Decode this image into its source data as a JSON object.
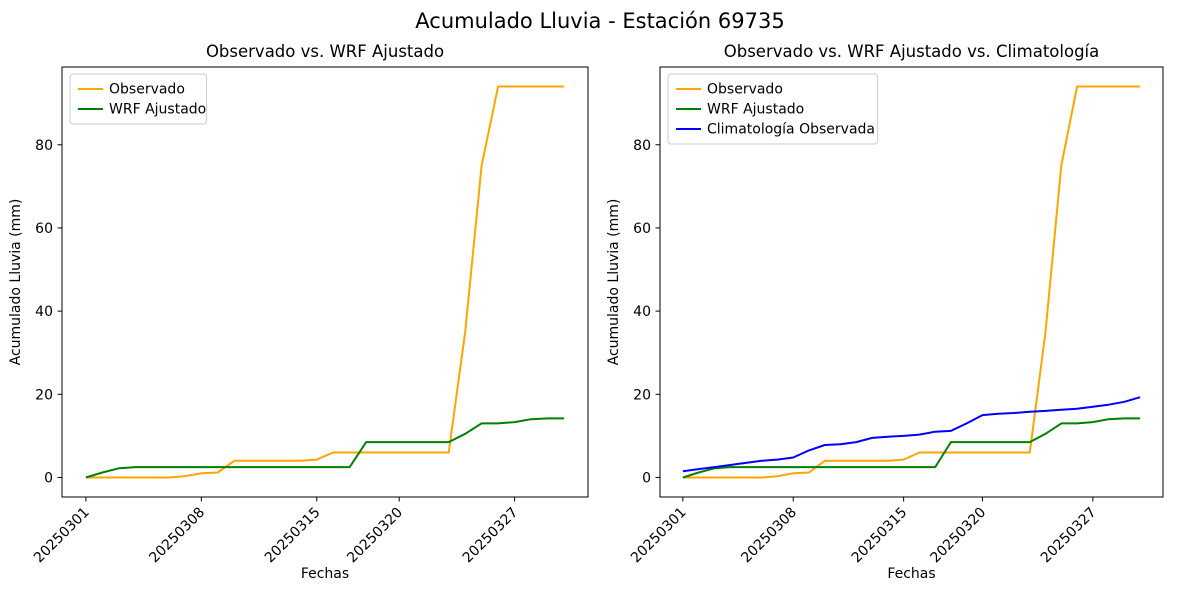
{
  "figure": {
    "title": "Acumulado Lluvia - Estación 69735",
    "background": "#ffffff"
  },
  "chart_data": [
    {
      "type": "line",
      "title": "Observado vs. WRF Ajustado",
      "xlabel": "Fechas",
      "ylabel": "Acumulado Lluvia (mm)",
      "x": [
        "20250301",
        "20250302",
        "20250303",
        "20250304",
        "20250305",
        "20250306",
        "20250307",
        "20250308",
        "20250309",
        "20250310",
        "20250311",
        "20250312",
        "20250313",
        "20250314",
        "20250315",
        "20250316",
        "20250317",
        "20250318",
        "20250319",
        "20250320",
        "20250321",
        "20250322",
        "20250323",
        "20250324",
        "20250325",
        "20250326",
        "20250327",
        "20250328",
        "20250329",
        "20250330"
      ],
      "xticks": [
        "20250301",
        "20250308",
        "20250315",
        "20250320",
        "20250327"
      ],
      "yticks": [
        0,
        20,
        40,
        60,
        80
      ],
      "ylim": [
        -4.7,
        98.7
      ],
      "grid": false,
      "legend_position": "upper left",
      "series": [
        {
          "name": "Observado",
          "color": "#ffa500",
          "values": [
            0,
            0,
            0,
            0,
            0,
            0,
            0.3,
            1,
            1.2,
            4,
            4,
            4,
            4,
            4,
            4.3,
            6,
            6,
            6,
            6,
            6,
            6,
            6,
            6,
            35,
            75,
            94,
            94,
            94,
            94,
            94
          ]
        },
        {
          "name": "WRF Ajustado",
          "color": "#008000",
          "values": [
            0,
            1.2,
            2.2,
            2.5,
            2.5,
            2.5,
            2.5,
            2.5,
            2.5,
            2.5,
            2.5,
            2.5,
            2.5,
            2.5,
            2.5,
            2.5,
            2.5,
            8.5,
            8.5,
            8.5,
            8.5,
            8.5,
            8.5,
            10.5,
            13,
            13,
            13.3,
            14,
            14.2,
            14.2
          ]
        }
      ]
    },
    {
      "type": "line",
      "title": "Observado vs. WRF Ajustado vs. Climatología",
      "xlabel": "Fechas",
      "ylabel": "Acumulado Lluvia (mm)",
      "x": [
        "20250301",
        "20250302",
        "20250303",
        "20250304",
        "20250305",
        "20250306",
        "20250307",
        "20250308",
        "20250309",
        "20250310",
        "20250311",
        "20250312",
        "20250313",
        "20250314",
        "20250315",
        "20250316",
        "20250317",
        "20250318",
        "20250319",
        "20250320",
        "20250321",
        "20250322",
        "20250323",
        "20250324",
        "20250325",
        "20250326",
        "20250327",
        "20250328",
        "20250329",
        "20250330"
      ],
      "xticks": [
        "20250301",
        "20250308",
        "20250315",
        "20250320",
        "20250327"
      ],
      "yticks": [
        0,
        20,
        40,
        60,
        80
      ],
      "ylim": [
        -4.7,
        98.7
      ],
      "grid": false,
      "legend_position": "upper left",
      "series": [
        {
          "name": "Observado",
          "color": "#ffa500",
          "values": [
            0,
            0,
            0,
            0,
            0,
            0,
            0.3,
            1,
            1.2,
            4,
            4,
            4,
            4,
            4,
            4.3,
            6,
            6,
            6,
            6,
            6,
            6,
            6,
            6,
            35,
            75,
            94,
            94,
            94,
            94,
            94
          ]
        },
        {
          "name": "WRF Ajustado",
          "color": "#008000",
          "values": [
            0,
            1.2,
            2.2,
            2.5,
            2.5,
            2.5,
            2.5,
            2.5,
            2.5,
            2.5,
            2.5,
            2.5,
            2.5,
            2.5,
            2.5,
            2.5,
            2.5,
            8.5,
            8.5,
            8.5,
            8.5,
            8.5,
            8.5,
            10.5,
            13,
            13,
            13.3,
            14,
            14.2,
            14.2
          ]
        },
        {
          "name": "Climatología Observada",
          "color": "#0000ff",
          "values": [
            1.5,
            2,
            2.5,
            3,
            3.5,
            4,
            4.3,
            4.8,
            6.5,
            7.8,
            8,
            8.5,
            9.5,
            9.8,
            10,
            10.3,
            11,
            11.2,
            13,
            15,
            15.3,
            15.5,
            15.8,
            16,
            16.3,
            16.5,
            17,
            17.5,
            18.2,
            19.3
          ]
        }
      ]
    }
  ]
}
